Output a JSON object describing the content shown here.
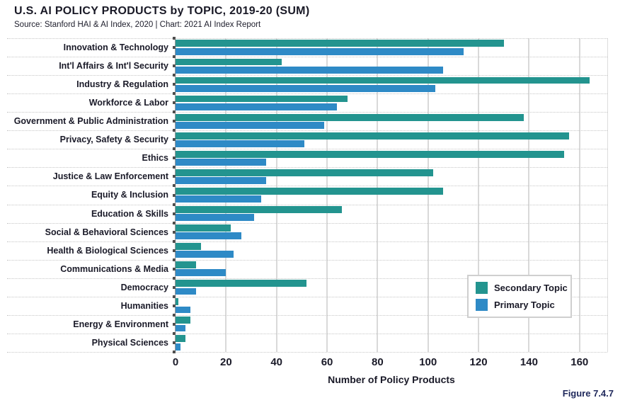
{
  "header": {
    "title": "U.S. AI POLICY PRODUCTS by TOPIC, 2019-20 (SUM)",
    "subtitle": "Source: Stanford HAI & AI Index, 2020 | Chart: 2021 AI Index Report"
  },
  "figure_label": "Figure 7.4.7",
  "colors": {
    "secondary_topic": "#23948F",
    "primary_topic": "#2E8AC6",
    "text": "#1A1A28",
    "figure_label": "#20295C",
    "gridline": "#D9D9D9",
    "row_divider": "#C6C6C6",
    "axis": "#9B9B9B",
    "legend_border": "#CFCFCF"
  },
  "legend": {
    "position": "middle-right",
    "items": [
      {
        "label": "Secondary Topic",
        "color": "#23948F"
      },
      {
        "label": "Primary Topic",
        "color": "#2E8AC6"
      }
    ]
  },
  "chart_data": {
    "type": "bar",
    "orientation": "horizontal",
    "title": "U.S. AI POLICY PRODUCTS by TOPIC, 2019-20 (SUM)",
    "xlabel": "Number of Policy Products",
    "ylabel": "",
    "xlim": [
      0,
      171
    ],
    "x_ticks": [
      0,
      20,
      40,
      60,
      80,
      100,
      120,
      140,
      160
    ],
    "grid": true,
    "legend_position": "middle-right",
    "categories": [
      "Innovation & Technology",
      "Int'l Affairs & Int'l Security",
      "Industry & Regulation",
      "Workforce & Labor",
      "Government & Public Administration",
      "Privacy, Safety & Security",
      "Ethics",
      "Justice & Law Enforcement",
      "Equity & Inclusion",
      "Education & Skills",
      "Social & Behavioral Sciences",
      "Health & Biological Sciences",
      "Communications & Media",
      "Democracy",
      "Humanities",
      "Energy & Environment",
      "Physical Sciences"
    ],
    "series": [
      {
        "name": "Secondary Topic",
        "color": "#23948F",
        "values": [
          130,
          42,
          164,
          68,
          138,
          156,
          154,
          102,
          106,
          66,
          22,
          10,
          8,
          52,
          1,
          6,
          4
        ]
      },
      {
        "name": "Primary Topic",
        "color": "#2E8AC6",
        "values": [
          114,
          106,
          103,
          64,
          59,
          51,
          36,
          36,
          34,
          31,
          26,
          23,
          20,
          8,
          6,
          4,
          2
        ]
      }
    ]
  }
}
